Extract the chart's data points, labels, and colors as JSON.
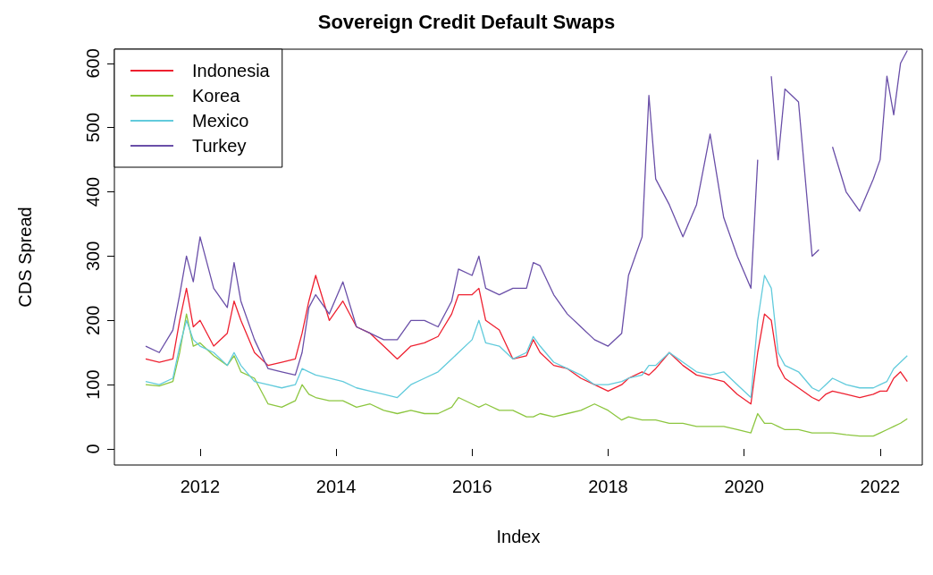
{
  "chart_data": {
    "type": "line",
    "title": "Sovereign Credit Default Swaps",
    "xlabel": "Index",
    "ylabel": "CDS Spread",
    "x": [
      2011.2,
      2011.4,
      2011.6,
      2011.7,
      2011.8,
      2011.9,
      2012.0,
      2012.2,
      2012.4,
      2012.5,
      2012.6,
      2012.8,
      2013.0,
      2013.2,
      2013.4,
      2013.5,
      2013.6,
      2013.7,
      2013.9,
      2014.1,
      2014.3,
      2014.5,
      2014.7,
      2014.9,
      2015.1,
      2015.3,
      2015.5,
      2015.7,
      2015.8,
      2016.0,
      2016.1,
      2016.2,
      2016.4,
      2016.6,
      2016.8,
      2016.9,
      2017.0,
      2017.2,
      2017.4,
      2017.6,
      2017.8,
      2018.0,
      2018.2,
      2018.3,
      2018.5,
      2018.6,
      2018.7,
      2018.9,
      2019.1,
      2019.3,
      2019.5,
      2019.7,
      2019.9,
      2020.1,
      2020.2,
      2020.3,
      2020.4,
      2020.5,
      2020.6,
      2020.8,
      2021.0,
      2021.1,
      2021.2,
      2021.3,
      2021.5,
      2021.7,
      2021.9,
      2022.0,
      2022.1,
      2022.2,
      2022.3,
      2022.4
    ],
    "series": [
      {
        "name": "Indonesia",
        "color": "#ee2030",
        "values": [
          140,
          135,
          140,
          200,
          250,
          190,
          200,
          160,
          180,
          230,
          200,
          150,
          130,
          135,
          140,
          180,
          230,
          270,
          200,
          230,
          190,
          180,
          160,
          140,
          160,
          165,
          175,
          210,
          240,
          240,
          250,
          200,
          185,
          140,
          145,
          170,
          150,
          130,
          125,
          110,
          100,
          90,
          100,
          110,
          120,
          115,
          125,
          150,
          130,
          115,
          110,
          105,
          85,
          70,
          150,
          210,
          200,
          130,
          110,
          95,
          80,
          75,
          85,
          90,
          85,
          80,
          85,
          90,
          90,
          110,
          120,
          105
        ]
      },
      {
        "name": "Korea",
        "color": "#8cc63f",
        "values": [
          100,
          98,
          105,
          150,
          210,
          160,
          165,
          145,
          130,
          145,
          120,
          110,
          70,
          65,
          75,
          100,
          85,
          80,
          75,
          75,
          65,
          70,
          60,
          55,
          60,
          55,
          55,
          65,
          80,
          70,
          65,
          70,
          60,
          60,
          50,
          50,
          55,
          50,
          55,
          60,
          70,
          60,
          45,
          50,
          45,
          45,
          45,
          40,
          40,
          35,
          35,
          35,
          30,
          25,
          55,
          40,
          40,
          35,
          30,
          30,
          25,
          25,
          25,
          25,
          22,
          20,
          20,
          25,
          30,
          35,
          40,
          47
        ]
      },
      {
        "name": "Mexico",
        "color": "#62cbdc",
        "values": [
          105,
          100,
          110,
          160,
          200,
          170,
          160,
          150,
          130,
          150,
          130,
          105,
          100,
          95,
          100,
          125,
          120,
          115,
          110,
          105,
          95,
          90,
          85,
          80,
          100,
          110,
          120,
          140,
          150,
          170,
          200,
          165,
          160,
          140,
          150,
          175,
          160,
          135,
          125,
          115,
          100,
          100,
          105,
          110,
          115,
          130,
          130,
          150,
          135,
          120,
          115,
          120,
          100,
          80,
          200,
          270,
          250,
          150,
          130,
          120,
          95,
          90,
          100,
          110,
          100,
          95,
          95,
          100,
          105,
          125,
          135,
          145
        ]
      },
      {
        "name": "Turkey",
        "color": "#6a4fa8",
        "values": [
          160,
          150,
          185,
          240,
          300,
          260,
          330,
          250,
          220,
          290,
          230,
          170,
          125,
          120,
          115,
          150,
          220,
          240,
          210,
          260,
          190,
          180,
          170,
          170,
          200,
          200,
          190,
          230,
          280,
          270,
          300,
          250,
          240,
          250,
          250,
          290,
          285,
          240,
          210,
          190,
          170,
          160,
          180,
          270,
          330,
          550,
          420,
          380,
          330,
          380,
          490,
          360,
          300,
          250,
          450,
          null,
          580,
          450,
          560,
          540,
          300,
          310,
          null,
          470,
          400,
          370,
          420,
          450,
          580,
          520,
          600,
          620
        ]
      }
    ],
    "xlim": [
      2010.74,
      2022.62
    ],
    "xticks": [
      2012,
      2014,
      2016,
      2018,
      2020,
      2022
    ],
    "ylim": [
      -25,
      622
    ],
    "yticks": [
      0,
      100,
      200,
      300,
      400,
      500,
      600
    ],
    "legend": "top left"
  }
}
